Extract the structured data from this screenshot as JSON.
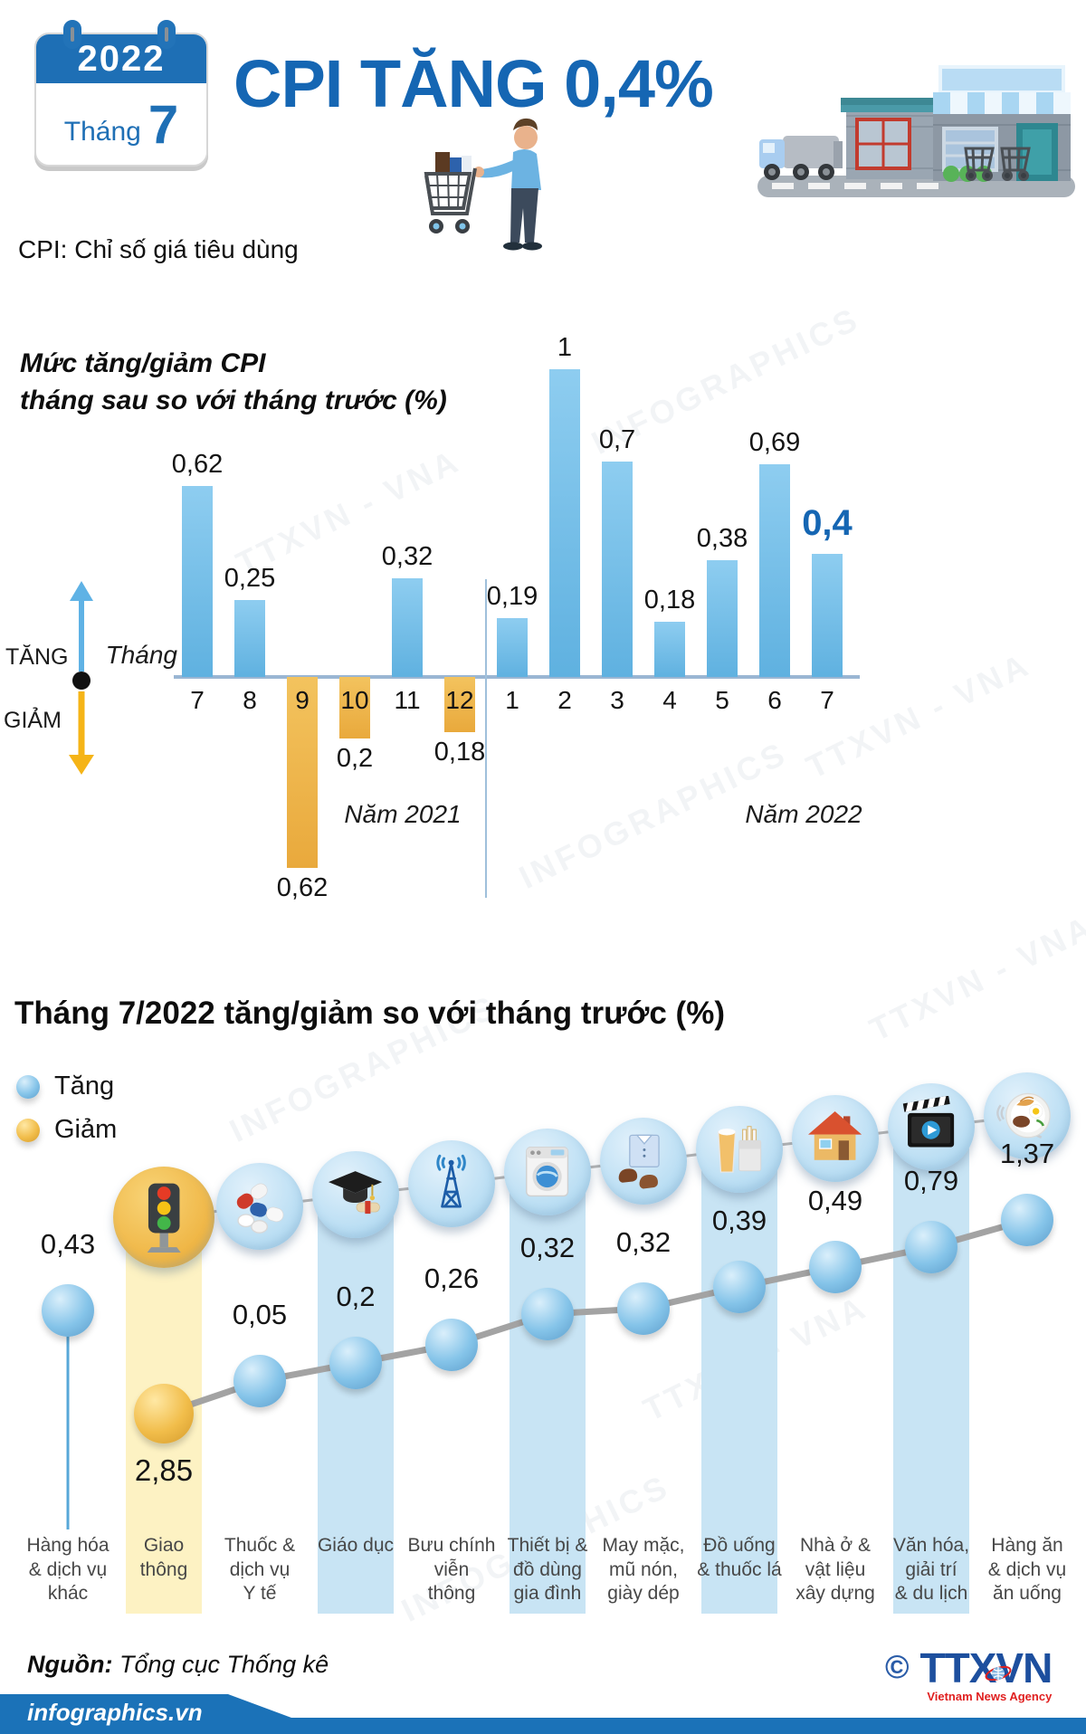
{
  "watermarks": [
    "TTXVN - VNA",
    "INFOGRAPHICS"
  ],
  "header": {
    "calendar": {
      "year": "2022",
      "month_label": "Tháng",
      "month_number": "7"
    },
    "title": "CPI TĂNG 0,4%",
    "subtitle": "CPI: Chỉ số giá tiêu dùng"
  },
  "chart_data": [
    {
      "type": "bar",
      "title_lines": [
        "Mức tăng/giảm CPI",
        "tháng sau so với tháng trước (%)"
      ],
      "x_axis_label": "Tháng",
      "axis_legend": {
        "up": "TĂNG",
        "down": "GIẢM"
      },
      "year_groups": [
        "Năm 2021",
        "Năm 2022"
      ],
      "categories": [
        "7",
        "8",
        "9",
        "10",
        "11",
        "12",
        "1",
        "2",
        "3",
        "4",
        "5",
        "6",
        "7"
      ],
      "values": [
        0.62,
        0.25,
        -0.62,
        -0.2,
        0.32,
        -0.18,
        0.19,
        1,
        0.7,
        0.18,
        0.38,
        0.69,
        0.4
      ],
      "labels": [
        "0,62",
        "0,25",
        "0,62",
        "0,2",
        "0,32",
        "0,18",
        "0,19",
        "1",
        "0,7",
        "0,18",
        "0,38",
        "0,69",
        "0,4"
      ],
      "highlight_index": 12,
      "ylim": [
        -0.7,
        1.05
      ],
      "colors": {
        "increase": "#6fb9e6",
        "decrease": "#edb44a",
        "highlight_label": "#1566b3"
      }
    },
    {
      "type": "line",
      "title": "Tháng 7/2022 tăng/giảm so với tháng trước (%)",
      "legend": [
        {
          "label": "Tăng",
          "color": "#7cc2e8"
        },
        {
          "label": "Giảm",
          "color": "#f0c14d"
        }
      ],
      "points": [
        {
          "category_lines": [
            "Hàng hóa",
            "& dịch vụ",
            "khác"
          ],
          "label": "0,43",
          "value": 0.43,
          "direction": "up",
          "icon": null,
          "band": null
        },
        {
          "category_lines": [
            "Giao",
            "thông"
          ],
          "label": "2,85",
          "value": -2.85,
          "direction": "down",
          "icon": "traffic-light-icon",
          "band": "yellow"
        },
        {
          "category_lines": [
            "Thuốc &",
            "dịch vụ",
            "Y tế"
          ],
          "label": "0,05",
          "value": 0.05,
          "direction": "up",
          "icon": "medicine-pills-icon",
          "band": null
        },
        {
          "category_lines": [
            "Giáo dục"
          ],
          "label": "0,2",
          "value": 0.2,
          "direction": "up",
          "icon": "graduation-cap-icon",
          "band": "blue"
        },
        {
          "category_lines": [
            "Bưu chính",
            "viễn",
            "thông"
          ],
          "label": "0,26",
          "value": 0.26,
          "direction": "up",
          "icon": "antenna-icon",
          "band": null
        },
        {
          "category_lines": [
            "Thiết bị &",
            "đồ dùng",
            "gia đình"
          ],
          "label": "0,32",
          "value": 0.32,
          "direction": "up",
          "icon": "washing-machine-icon",
          "band": "blue"
        },
        {
          "category_lines": [
            "May mặc,",
            "mũ nón,",
            "giày dép"
          ],
          "label": "0,32",
          "value": 0.32,
          "direction": "up",
          "icon": "clothing-icon",
          "band": null
        },
        {
          "category_lines": [
            "Đồ uống",
            "& thuốc lá"
          ],
          "label": "0,39",
          "value": 0.39,
          "direction": "up",
          "icon": "beverage-tobacco-icon",
          "band": "blue"
        },
        {
          "category_lines": [
            "Nhà ở &",
            "vật liệu",
            "xây dựng"
          ],
          "label": "0,49",
          "value": 0.49,
          "direction": "up",
          "icon": "house-icon",
          "band": null
        },
        {
          "category_lines": [
            "Văn hóa,",
            "giải trí",
            "& du lịch"
          ],
          "label": "0,79",
          "value": 0.79,
          "direction": "up",
          "icon": "cinema-clapper-icon",
          "band": "blue"
        },
        {
          "category_lines": [
            "Hàng ăn",
            "& dịch vụ",
            "ăn uống"
          ],
          "label": "1,37",
          "value": 1.37,
          "direction": "up",
          "icon": "food-plate-icon",
          "band": null
        }
      ]
    }
  ],
  "footer": {
    "source_label": "Nguồn:",
    "source_value": "Tổng cục Thống kê",
    "site": "infographics.vn",
    "logo": {
      "copyright": "©",
      "text": "TTXVN",
      "tagline": "Vietnam News Agency"
    }
  }
}
